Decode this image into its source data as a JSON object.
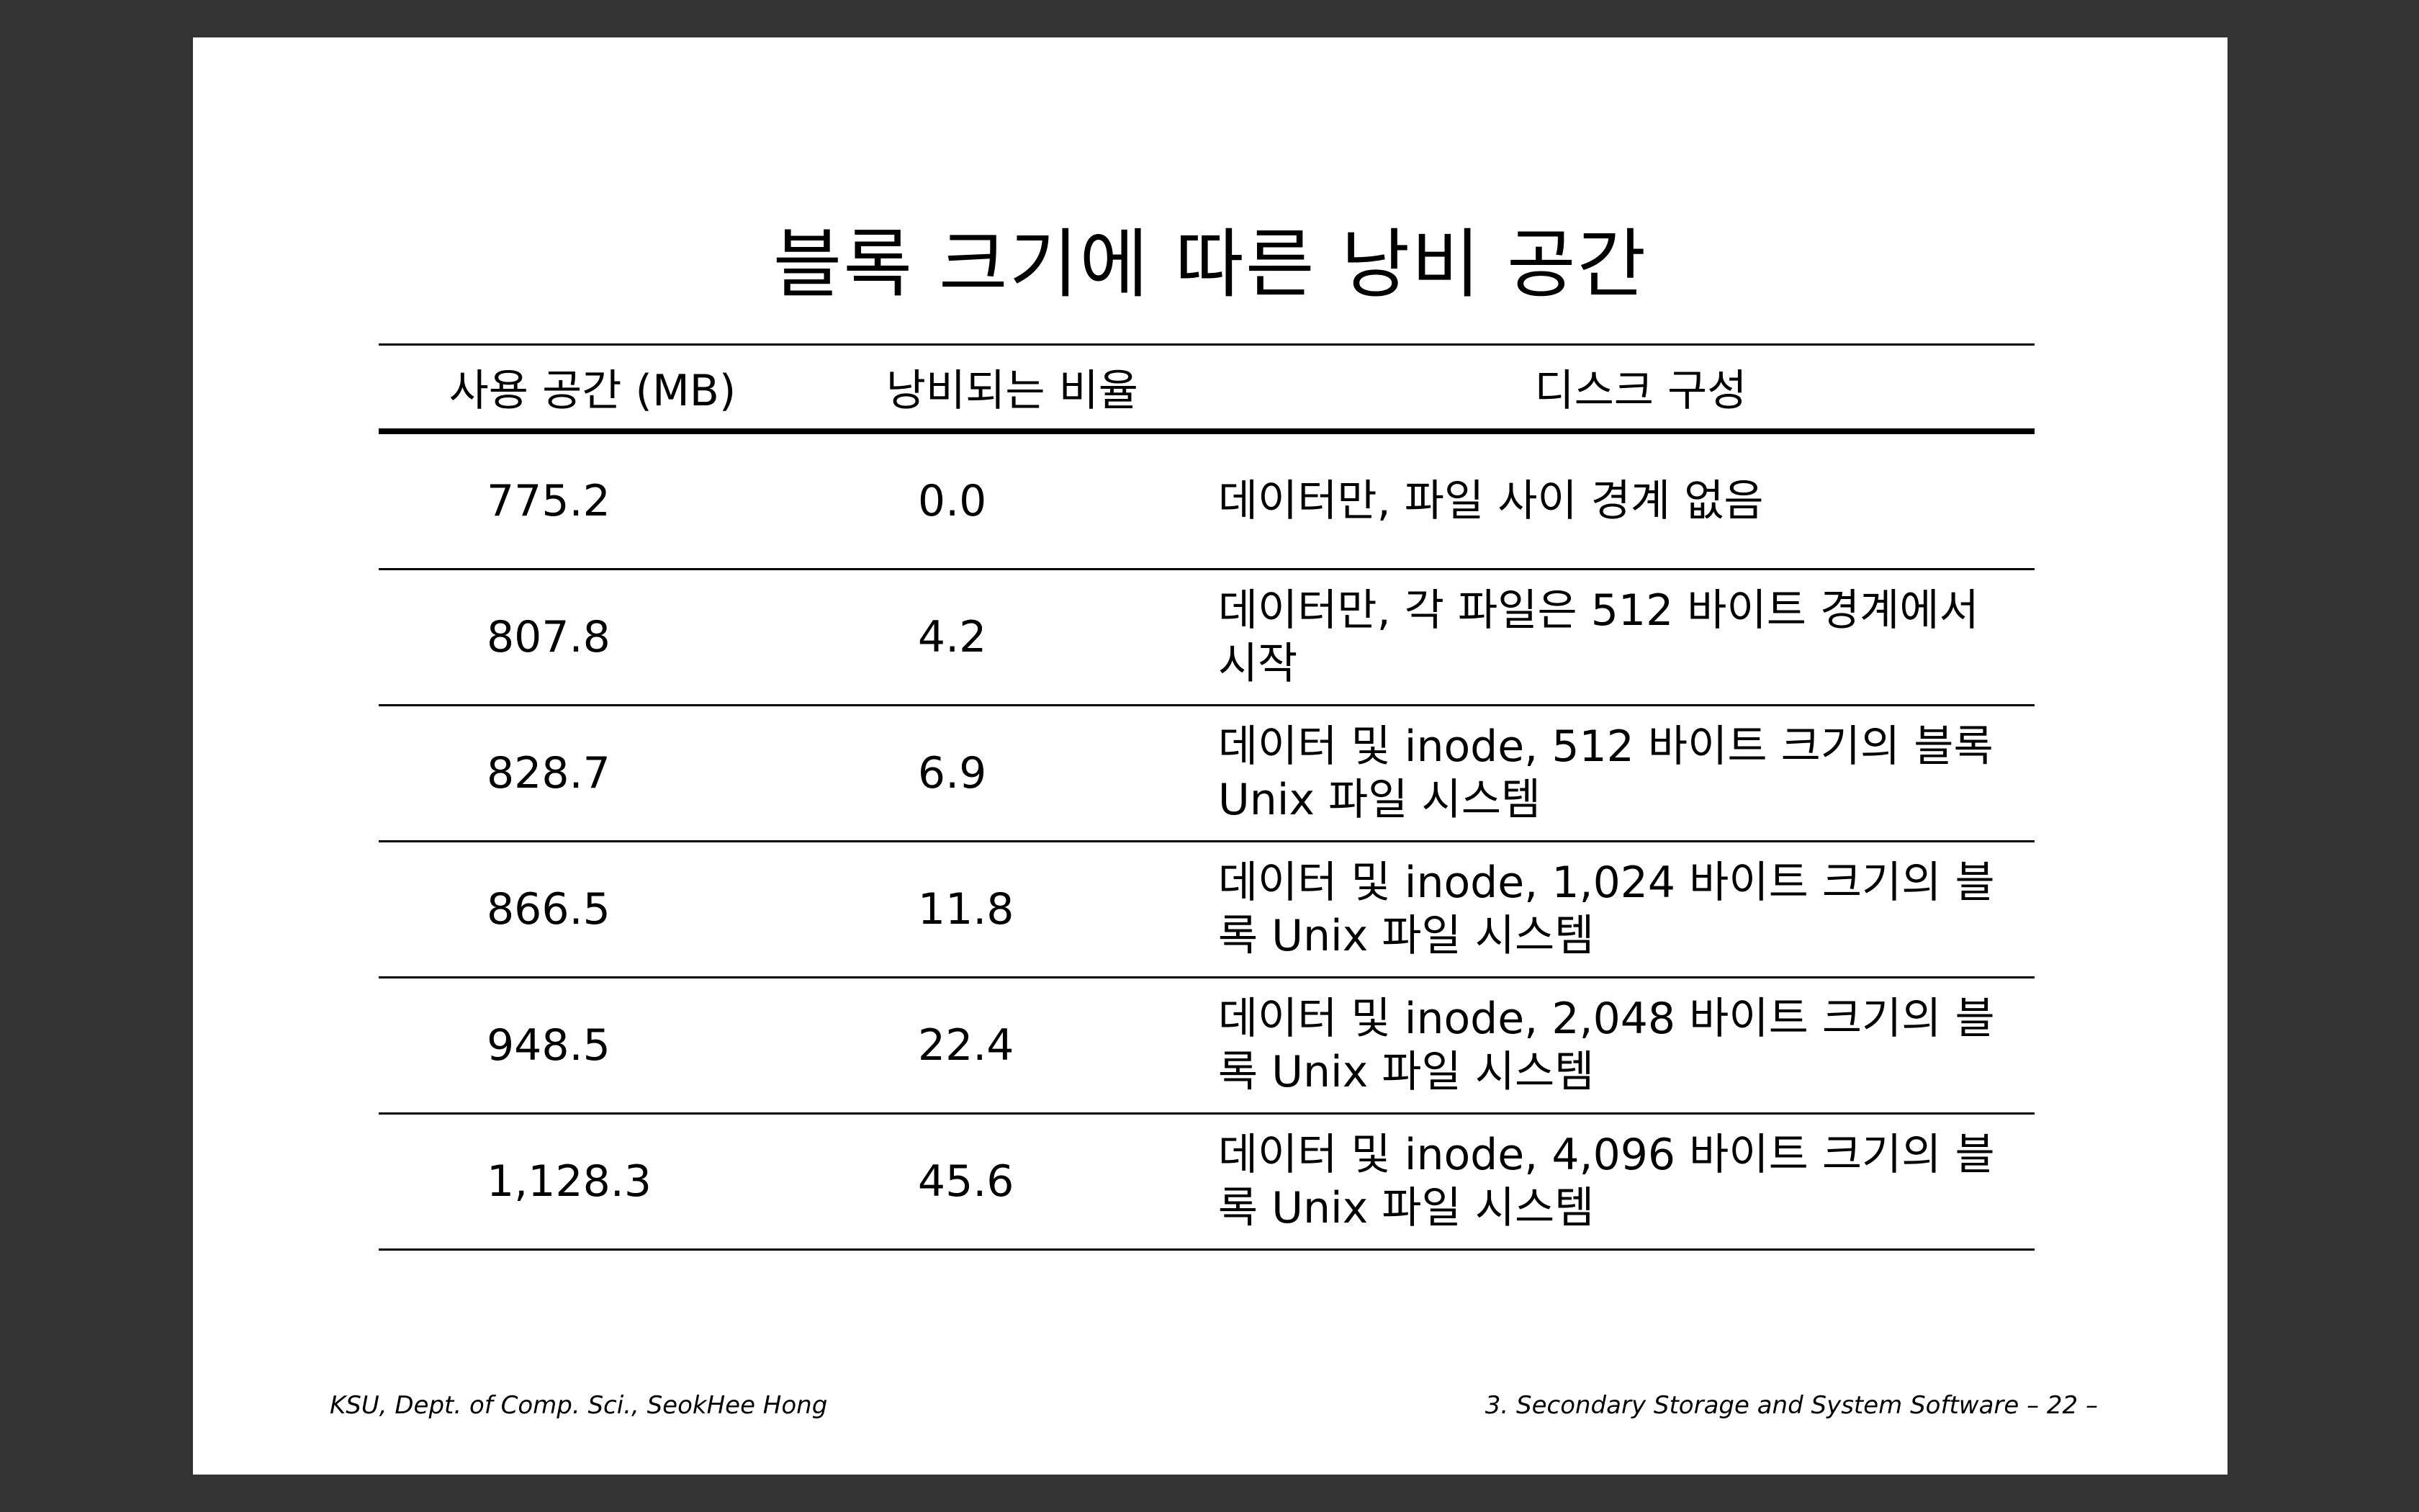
{
  "title": "블록 크기에 따른 낭비 공간",
  "table": {
    "headers": [
      "사용 공간 (MB)",
      "낭비되는 비율",
      "디스크 구성"
    ],
    "rows": [
      {
        "used": "775.2",
        "waste": "0.0",
        "config": "데이터만, 파일 사이 경계 없음"
      },
      {
        "used": "807.8",
        "waste": "4.2",
        "config": "데이터만, 각 파일은 512 바이트 경계에서 시작"
      },
      {
        "used": "828.7",
        "waste": "6.9",
        "config": "데이터 및 inode, 512 바이트 크기의 블록 Unix 파일 시스템"
      },
      {
        "used": "866.5",
        "waste": "11.8",
        "config": "데이터 및 inode, 1,024 바이트 크기의 블록 Unix 파일 시스템"
      },
      {
        "used": "948.5",
        "waste": "22.4",
        "config": "데이터 및 inode, 2,048 바이트 크기의 블록 Unix 파일 시스템"
      },
      {
        "used": "1,128.3",
        "waste": "45.6",
        "config": "데이터 및 inode, 4,096 바이트 크기의 블록 Unix 파일 시스템"
      }
    ]
  },
  "footer": {
    "left": "KSU, Dept. of Comp. Sci., SeokHee Hong",
    "right": "3. Secondary Storage and System Software   – 22 –"
  }
}
